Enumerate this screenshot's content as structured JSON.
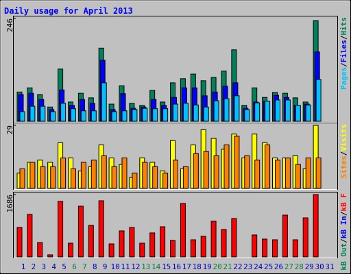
{
  "chart_data": {
    "type": "bar",
    "title": "Daily usage for April 2013",
    "separator": "/",
    "categories": [
      "1",
      "2",
      "3",
      "4",
      "5",
      "6",
      "7",
      "8",
      "9",
      "10",
      "11",
      "12",
      "13",
      "14",
      "15",
      "16",
      "17",
      "18",
      "19",
      "20",
      "21",
      "22",
      "23",
      "24",
      "25",
      "26",
      "27",
      "28",
      "29",
      "30",
      "31"
    ],
    "category_colors": [
      "#0000c0",
      "#0000c0",
      "#0000c0",
      "#0000c0",
      "#0000c0",
      "#008040",
      "#008040",
      "#0000c0",
      "#0000c0",
      "#0000c0",
      "#0000c0",
      "#0000c0",
      "#008040",
      "#008040",
      "#0000c0",
      "#0000c0",
      "#0000c0",
      "#0000c0",
      "#0000c0",
      "#008040",
      "#008040",
      "#0000c0",
      "#0000c0",
      "#0000c0",
      "#0000c0",
      "#0000c0",
      "#008040",
      "#008040",
      "#0000c0",
      "#0000c0",
      "#0000c0"
    ],
    "panels": [
      {
        "ylim": [
          0,
          246
        ],
        "yticks": [
          246
        ],
        "series": [
          {
            "name": "Hits",
            "color": "#00805c",
            "values": [
              70,
              80,
              64,
              34,
              125,
              46,
              67,
              56,
              175,
              41,
              85,
              43,
              38,
              74,
              46,
              92,
              102,
              113,
              97,
              105,
              120,
              171,
              38,
              80,
              57,
              69,
              67,
              56,
              46,
              241,
              null
            ]
          },
          {
            "name": "Files",
            "color": "#0000ff",
            "values": [
              64,
              67,
              52,
              28,
              75,
              38,
              52,
              43,
              146,
              28,
              66,
              31,
              34,
              52,
              38,
              57,
              80,
              80,
              61,
              70,
              84,
              92,
              31,
              46,
              48,
              62,
              57,
              38,
              41,
              166,
              null
            ]
          },
          {
            "name": "Pages",
            "color": "#00c0ff",
            "values": [
              23,
              36,
              36,
              23,
              43,
              30,
              25,
              25,
              92,
              23,
              25,
              28,
              31,
              30,
              30,
              41,
              43,
              39,
              34,
              49,
              54,
              61,
              28,
              44,
              48,
              51,
              51,
              38,
              39,
              100,
              null
            ]
          }
        ]
      },
      {
        "ylim": [
          0,
          29
        ],
        "yticks": [
          29
        ],
        "series": [
          {
            "name": "Visits",
            "color": "#ffff00",
            "values": [
              7,
              12,
              13,
              12,
              21,
              14,
              8,
              10,
              20,
              14,
              11,
              5,
              14,
              12,
              8,
              22,
              9,
              20,
              27,
              23,
              18,
              25,
              14,
              25,
              21,
              14,
              14,
              15,
              9,
              29,
              null
            ]
          },
          {
            "name": "Sites",
            "color": "#ff8000",
            "values": [
              9,
              12,
              10,
              10,
              14,
              9,
              12,
              13,
              15,
              10,
              14,
              7,
              12,
              10,
              7,
              13,
              10,
              16,
              17,
              15,
              20,
              24,
              15,
              13,
              20,
              13,
              14,
              11,
              14,
              14,
              null
            ]
          }
        ]
      },
      {
        "ylim": [
          0,
          1686
        ],
        "yticks": [
          1686
        ],
        "series": [
          {
            "name": "kB F",
            "color": "#ff0000",
            "values": [
              797,
              1149,
              389,
              56,
              1501,
              371,
              1371,
              852,
              1519,
              352,
              704,
              797,
              371,
              649,
              815,
              445,
              1445,
              463,
              556,
              964,
              741,
              1038,
              0,
              593,
              482,
              463,
              1130,
              463,
              1056,
              1686,
              null
            ]
          },
          {
            "name": "kB In",
            "color": "#0000ff",
            "values": [
              0,
              0,
              0,
              0,
              0,
              0,
              0,
              0,
              0,
              0,
              0,
              0,
              0,
              0,
              0,
              0,
              0,
              0,
              0,
              0,
              0,
              0,
              0,
              0,
              0,
              0,
              0,
              0,
              0,
              0,
              null
            ]
          },
          {
            "name": "kB Out",
            "color": "#00805c",
            "values": [
              0,
              0,
              0,
              0,
              0,
              0,
              0,
              0,
              0,
              0,
              0,
              0,
              0,
              0,
              0,
              0,
              0,
              0,
              0,
              0,
              0,
              0,
              0,
              0,
              0,
              0,
              0,
              0,
              0,
              0,
              null
            ]
          }
        ]
      }
    ]
  }
}
